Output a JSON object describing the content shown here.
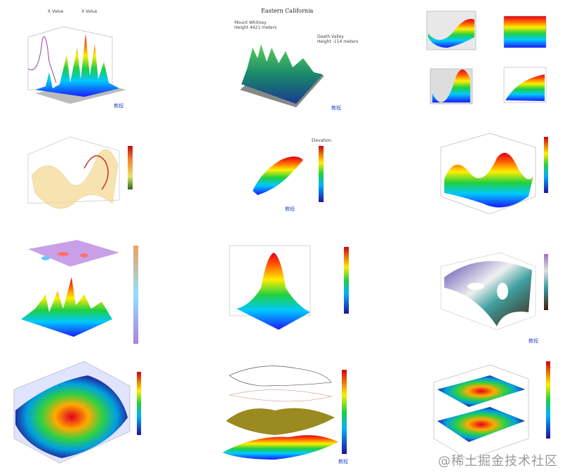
{
  "panel_link": "教程",
  "watermark": "@稀土掘金技术社区",
  "chart_data": [
    {
      "type": "surface3d",
      "title": "",
      "annotations": [
        "X Value",
        "X Value"
      ],
      "colormap": "rainbow"
    },
    {
      "type": "surface3d",
      "title": "Eastern California",
      "annotations": [
        "Mount Whitney",
        "Height 4421 meters",
        "Death Valley",
        "Height -114 meters"
      ],
      "colormap": "green-blue"
    },
    {
      "type": "multi-panel",
      "title": "",
      "panels": 4,
      "colormap": "rainbow"
    },
    {
      "type": "wireframe3d",
      "title": "",
      "colormap": "yellow-red"
    },
    {
      "type": "surface3d",
      "title": "Elevation",
      "colormap": "rainbow"
    },
    {
      "type": "surface3d",
      "title": "",
      "colormap": "rainbow"
    },
    {
      "type": "surface3d",
      "title": "",
      "colormap": "purple-yellow"
    },
    {
      "type": "surface3d",
      "title": "",
      "colormap": "rainbow"
    },
    {
      "type": "surface3d",
      "title": "",
      "colormap": "rainbow"
    },
    {
      "type": "surface3d",
      "title": "",
      "colormap": "rainbow"
    },
    {
      "type": "stacked3d",
      "title": "",
      "colormap": "rainbow"
    },
    {
      "type": "stacked3d",
      "title": "",
      "colormap": "rainbow"
    }
  ],
  "colors": {
    "link": "#3355cc",
    "watermark": "#9a9a9a"
  }
}
